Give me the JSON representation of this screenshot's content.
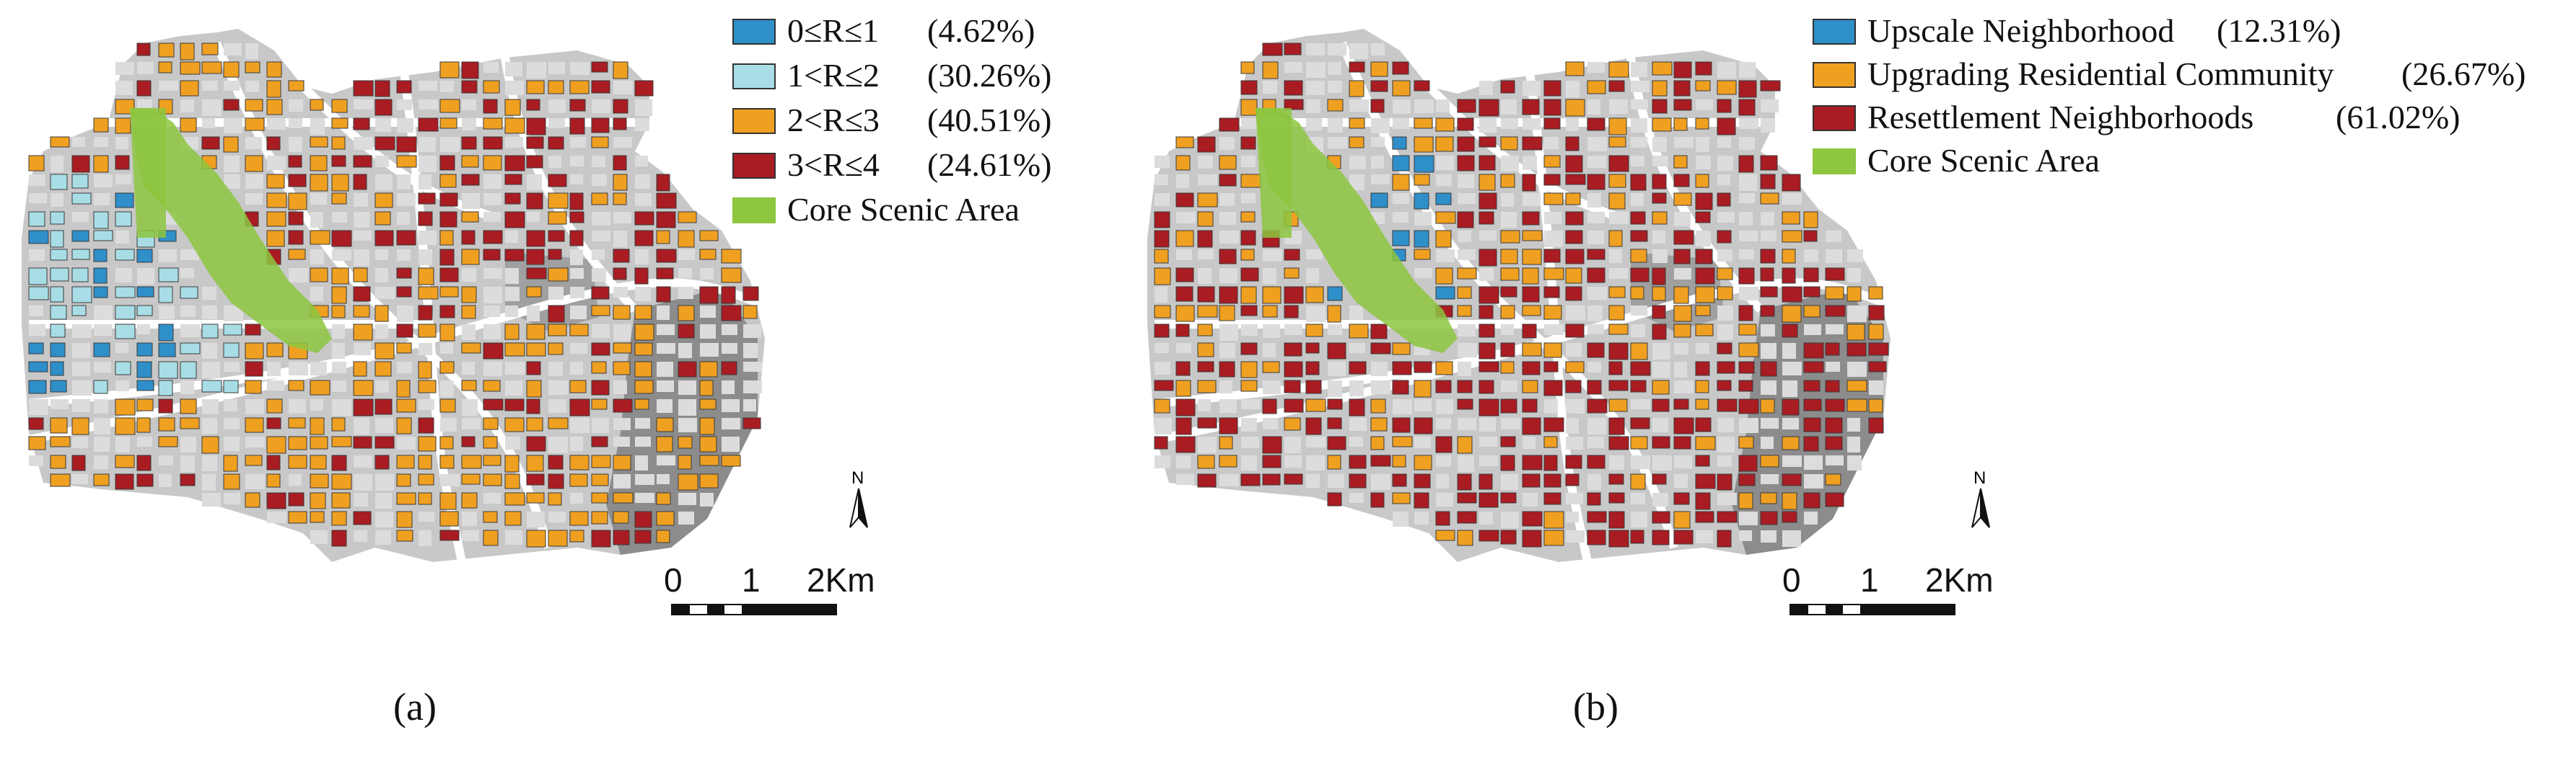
{
  "panels": [
    {
      "id": "a",
      "caption": "(a)",
      "legend": [
        {
          "label": "0≤R≤1",
          "pct": "(4.62%)",
          "color": "#2e8fc9"
        },
        {
          "label": "1<R≤2",
          "pct": "(30.26%)",
          "color": "#a8dde6"
        },
        {
          "label": "2<R≤3",
          "pct": "(40.51%)",
          "color": "#f0a020"
        },
        {
          "label": "3<R≤4",
          "pct": "(24.61%)",
          "color": "#a81c22"
        },
        {
          "label": "Core Scenic Area",
          "pct": "",
          "color": "#8dc63f"
        }
      ],
      "scale": {
        "zero": "0",
        "one": "1",
        "two": "2Km"
      },
      "north": "N"
    },
    {
      "id": "b",
      "caption": "(b)",
      "legend": [
        {
          "label": "Upscale Neighborhood",
          "pct": "(12.31%)",
          "color": "#2e8fc9"
        },
        {
          "label": "Upgrading Residential Community",
          "pct": "(26.67%)",
          "color": "#f0a020"
        },
        {
          "label": "Resettlement Neighborhoods",
          "pct": "(61.02%)",
          "color": "#a81c22"
        },
        {
          "label": "Core Scenic Area",
          "pct": "",
          "color": "#8dc63f"
        }
      ],
      "scale": {
        "zero": "0",
        "one": "1",
        "two": "2Km"
      },
      "north": "N"
    }
  ],
  "colors": {
    "base_gray": "#c8c8c8",
    "dark_gray": "#8c8c8c",
    "road": "#ffffff"
  }
}
